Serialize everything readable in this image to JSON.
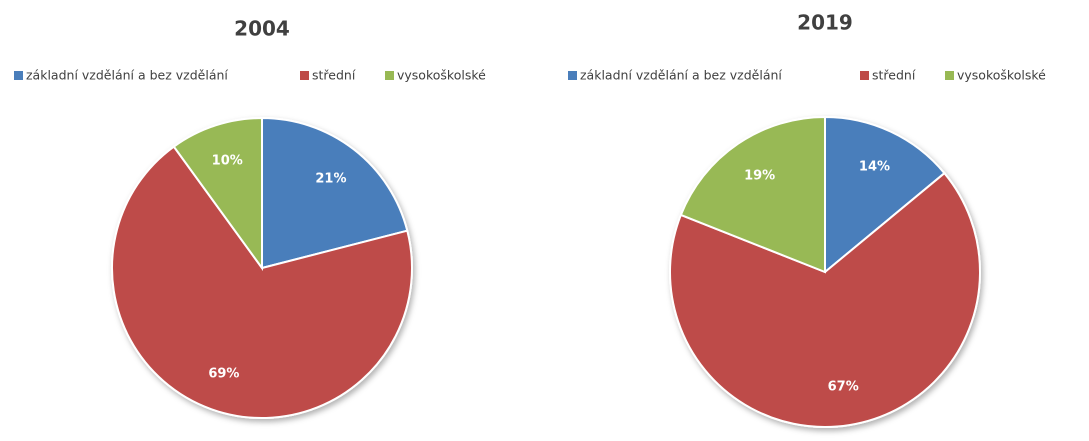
{
  "chart_data": [
    {
      "type": "pie",
      "title": "2004",
      "categories": [
        "základní vzdělání a bez vzdělání",
        "střední",
        "vysokoškolské"
      ],
      "values": [
        21,
        69,
        10
      ],
      "value_labels": [
        "21%",
        "69%",
        "10%"
      ],
      "colors": [
        "#4a7ebb",
        "#be4b48",
        "#98b954"
      ]
    },
    {
      "type": "pie",
      "title": "2019",
      "categories": [
        "základní vzdělání a bez vzdělání",
        "střední",
        "vysokoškolské"
      ],
      "values": [
        14,
        67,
        19
      ],
      "value_labels": [
        "14%",
        "67%",
        "19%"
      ],
      "colors": [
        "#4a7ebb",
        "#be4b48",
        "#98b954"
      ]
    }
  ]
}
